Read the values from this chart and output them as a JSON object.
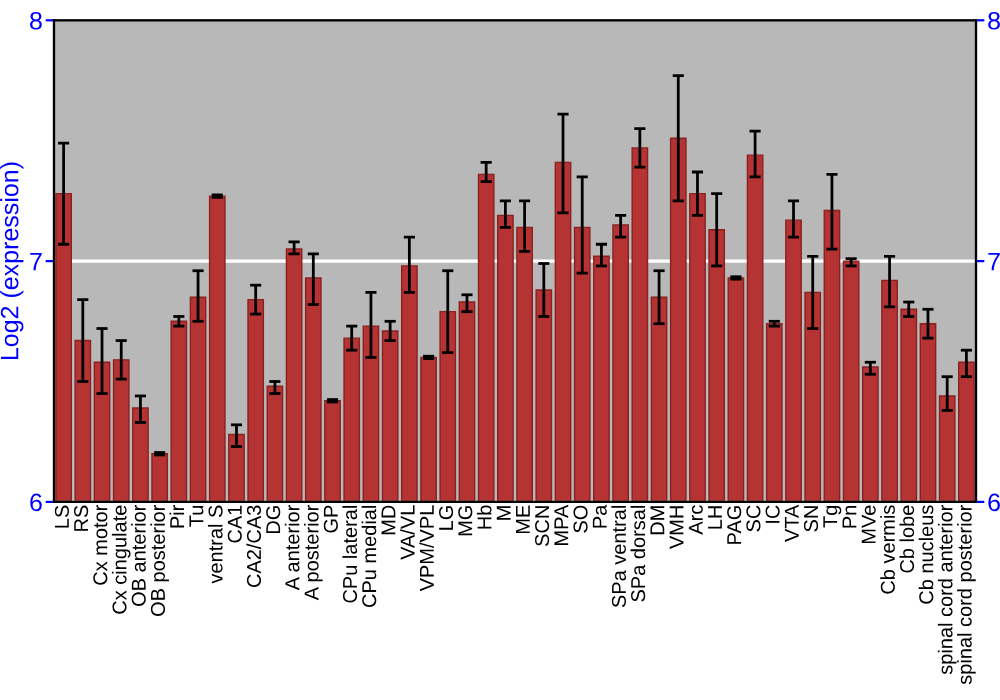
{
  "chart_data": {
    "type": "bar",
    "ylabel": "Log2 (expression)",
    "categories": [
      "LS",
      "RS",
      "Cx motor",
      "Cx cingulate",
      "OB anterior",
      "OB posterior",
      "Pir",
      "Tu",
      "ventral S",
      "CA1",
      "CA2/CA3",
      "DG",
      "A anterior",
      "A posterior",
      "GP",
      "CPu lateral",
      "CPu medial",
      "MD",
      "VA/VL",
      "VPM/VPL",
      "LG",
      "MG",
      "Hb",
      "M",
      "ME",
      "SCN",
      "MPA",
      "SO",
      "Pa",
      "SPa ventral",
      "SPa dorsal",
      "DM",
      "VMH",
      "Arc",
      "LH",
      "PAG",
      "SC",
      "IC",
      "VTA",
      "SN",
      "Tg",
      "Pn",
      "MVe",
      "Cb vermis",
      "Cb lobe",
      "Cb nucleus",
      "spinal cord anterior",
      "spinal cord posterior"
    ],
    "values": [
      7.28,
      6.67,
      6.58,
      6.59,
      6.39,
      6.2,
      6.75,
      6.85,
      7.27,
      6.28,
      6.84,
      6.48,
      7.05,
      6.93,
      6.42,
      6.68,
      6.73,
      6.71,
      6.98,
      6.6,
      6.79,
      6.83,
      7.36,
      7.19,
      7.14,
      6.88,
      7.41,
      7.14,
      7.02,
      7.15,
      7.47,
      6.85,
      7.51,
      7.28,
      7.13,
      6.93,
      7.44,
      6.74,
      7.17,
      6.87,
      7.21,
      7.0,
      6.56,
      6.92,
      6.8,
      6.74,
      6.44,
      6.58
    ],
    "errors": [
      [
        7.07,
        7.49
      ],
      [
        6.5,
        6.84
      ],
      [
        6.45,
        6.72
      ],
      [
        6.51,
        6.67
      ],
      [
        6.33,
        6.44
      ],
      0.005,
      [
        6.73,
        6.77
      ],
      [
        6.75,
        6.96
      ],
      0.005,
      [
        6.23,
        6.32
      ],
      [
        6.78,
        6.9
      ],
      [
        6.45,
        6.5
      ],
      [
        7.03,
        7.08
      ],
      [
        6.82,
        7.03
      ],
      0.005,
      [
        6.63,
        6.73
      ],
      [
        6.6,
        6.87
      ],
      [
        6.67,
        6.75
      ],
      [
        6.87,
        7.1
      ],
      0.005,
      [
        6.62,
        6.96
      ],
      [
        6.79,
        6.86
      ],
      [
        7.33,
        7.41
      ],
      [
        7.14,
        7.25
      ],
      [
        7.04,
        7.25
      ],
      [
        6.77,
        6.99
      ],
      [
        7.2,
        7.61
      ],
      [
        6.95,
        7.35
      ],
      [
        6.98,
        7.07
      ],
      [
        7.1,
        7.19
      ],
      [
        7.39,
        7.55
      ],
      [
        6.74,
        6.96
      ],
      [
        7.25,
        7.77
      ],
      [
        7.19,
        7.37
      ],
      [
        6.98,
        7.28
      ],
      0.005,
      [
        7.35,
        7.54
      ],
      0.01,
      [
        7.1,
        7.25
      ],
      [
        6.72,
        7.02
      ],
      [
        7.05,
        7.36
      ],
      [
        6.98,
        7.01
      ],
      [
        6.53,
        6.58
      ],
      [
        6.81,
        7.02
      ],
      [
        6.77,
        6.83
      ],
      [
        6.68,
        6.8
      ],
      [
        6.38,
        6.52
      ],
      [
        6.52,
        6.63
      ]
    ],
    "color": "#b53333",
    "ylim": [
      6,
      8
    ],
    "yticks": [
      6,
      7,
      8
    ],
    "y2lim": [
      6,
      8
    ],
    "y2ticks": [
      6,
      7,
      8
    ],
    "grid": "y"
  }
}
